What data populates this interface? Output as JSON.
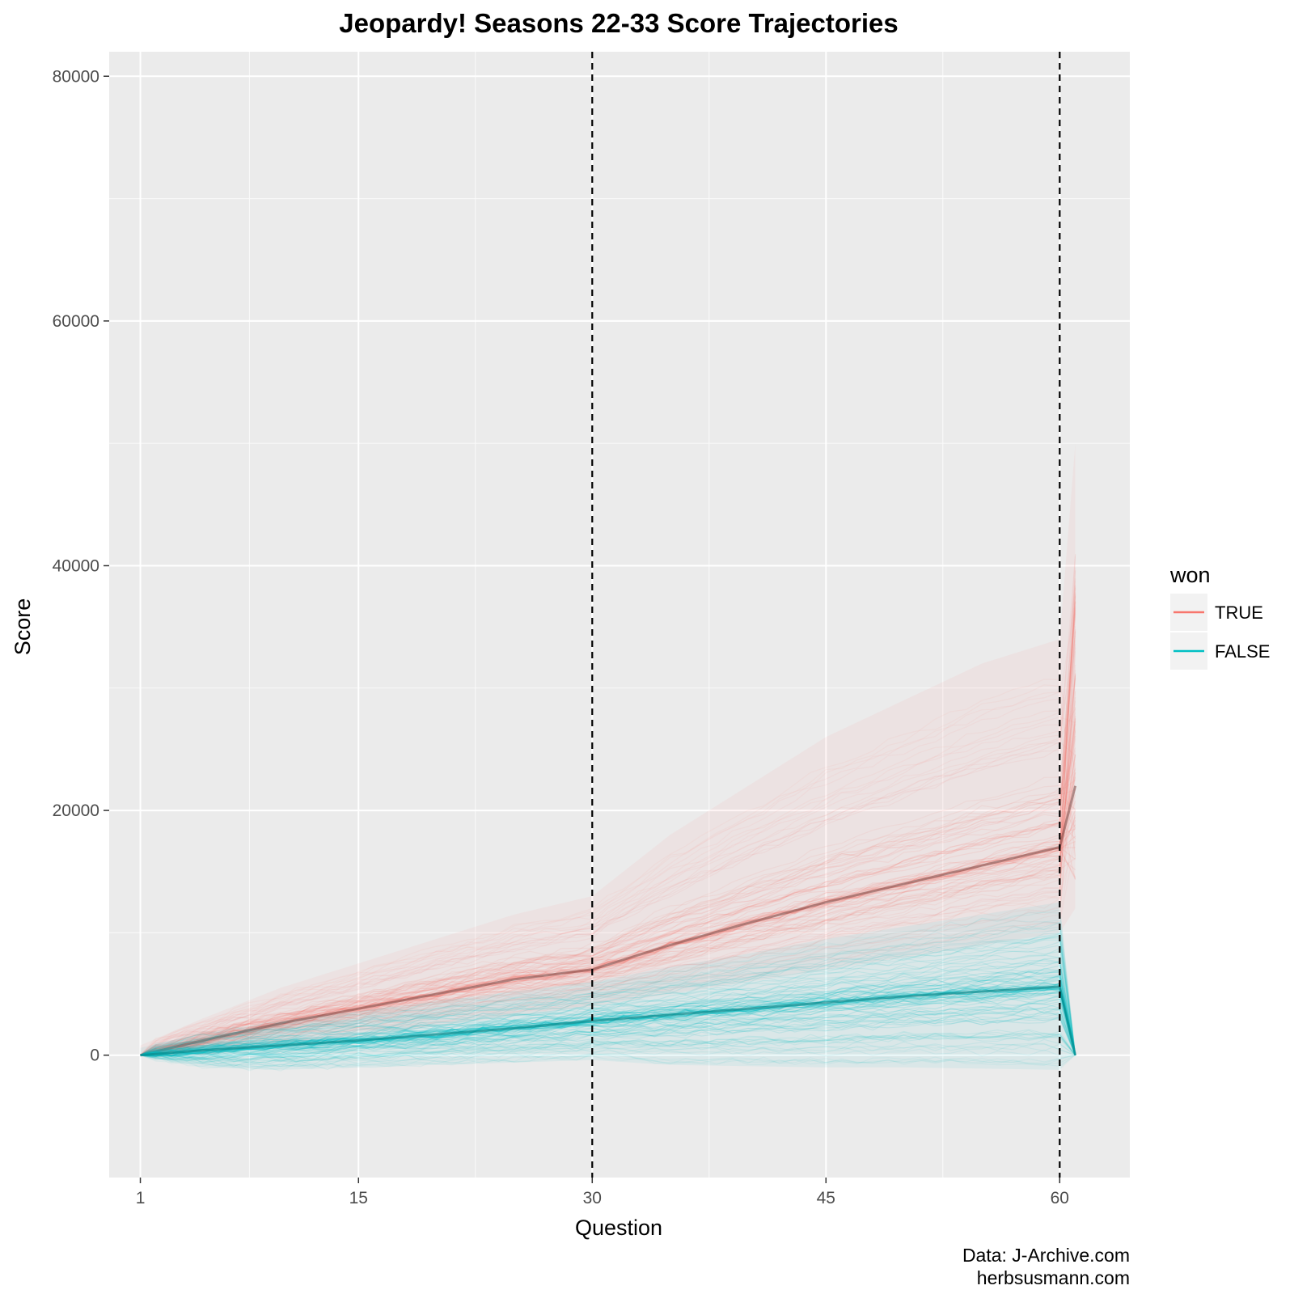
{
  "chart_data": {
    "type": "line",
    "title": "Jeopardy! Seasons 22-33 Score Trajectories",
    "xlabel": "Question",
    "ylabel": "Score",
    "xlim": [
      -1,
      64.5
    ],
    "ylim": [
      -10000,
      82000
    ],
    "x_ticks": [
      1,
      15,
      30,
      45,
      60
    ],
    "x_tick_labels": [
      "1",
      "15",
      "30",
      "45",
      "60"
    ],
    "y_ticks": [
      0,
      20000,
      40000,
      60000,
      80000
    ],
    "y_tick_labels": [
      "0",
      "20000",
      "40000",
      "60000",
      "80000"
    ],
    "reference_lines": [
      {
        "x": 30,
        "style": "dashed",
        "color": "#000000"
      },
      {
        "x": 60,
        "style": "dashed",
        "color": "#000000"
      }
    ],
    "legend": {
      "title": "won",
      "position": "right",
      "entries": [
        {
          "label": "TRUE",
          "color": "#F8766D"
        },
        {
          "label": "FALSE",
          "color": "#00BFC4"
        }
      ]
    },
    "series": [
      {
        "name": "TRUE",
        "color": "#F8766D",
        "x": [
          1,
          5,
          10,
          15,
          20,
          25,
          30,
          35,
          40,
          45,
          50,
          55,
          60,
          61
        ],
        "median": [
          0,
          1200,
          2600,
          3800,
          5000,
          6200,
          7000,
          9000,
          10800,
          12500,
          14000,
          15500,
          17000,
          22000
        ],
        "low": [
          0,
          0,
          800,
          1500,
          2400,
          3200,
          4000,
          5000,
          6000,
          7000,
          8000,
          9000,
          10000,
          12000
        ],
        "high": [
          800,
          3000,
          5500,
          7500,
          9500,
          11500,
          13000,
          18000,
          22000,
          26000,
          29000,
          32000,
          34000,
          50000
        ]
      },
      {
        "name": "FALSE",
        "color": "#00BFC4",
        "x": [
          1,
          5,
          10,
          15,
          20,
          25,
          30,
          35,
          40,
          45,
          50,
          55,
          60,
          61
        ],
        "median": [
          0,
          400,
          800,
          1200,
          1700,
          2200,
          2800,
          3300,
          3800,
          4300,
          4800,
          5200,
          5600,
          0
        ],
        "low": [
          0,
          -1000,
          -1200,
          -1000,
          -800,
          -600,
          -400,
          -800,
          -900,
          -1000,
          -1000,
          -1100,
          -1200,
          0
        ],
        "high": [
          600,
          1800,
          2800,
          3600,
          4400,
          5200,
          6000,
          7200,
          8300,
          9500,
          10500,
          11500,
          12500,
          0
        ]
      }
    ]
  },
  "caption_lines": [
    "Data: J-Archive.com",
    "herbsusmann.com"
  ]
}
